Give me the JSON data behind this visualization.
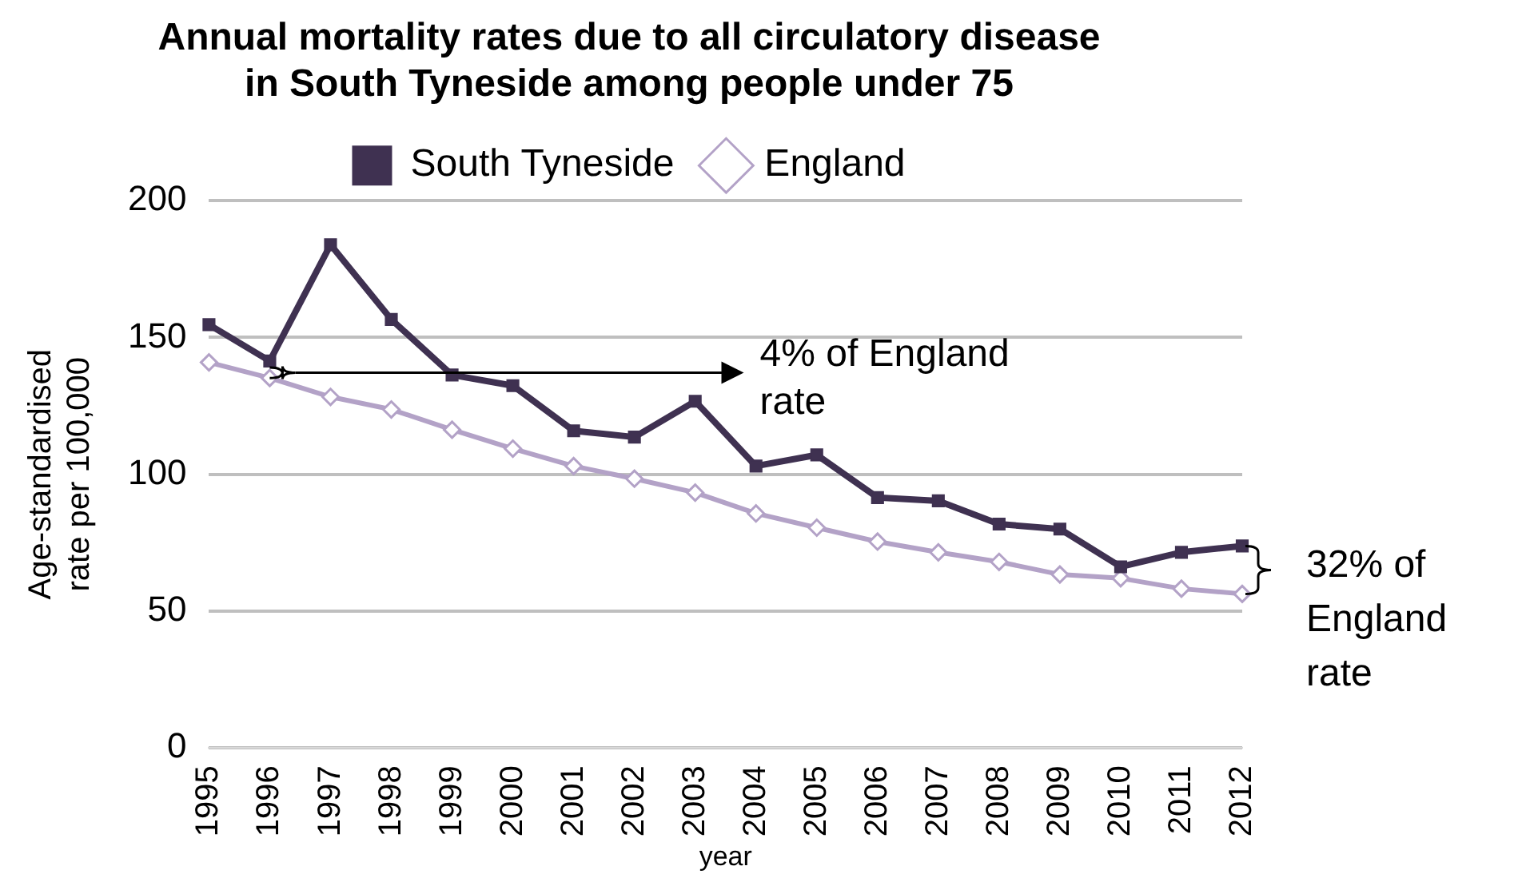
{
  "chart_data": {
    "type": "line",
    "title": "Annual mortality rates due to all circulatory disease in South Tyneside among people under 75",
    "xlabel": "year",
    "ylabel": "Age-standardised rate per 100,000",
    "categories": [
      "1995",
      "1996",
      "1997",
      "1998",
      "1999",
      "2000",
      "2001",
      "2002",
      "2003",
      "2004",
      "2005",
      "2006",
      "2007",
      "2008",
      "2009",
      "2010",
      "2011",
      "2012"
    ],
    "series": [
      {
        "name": "South Tyneside",
        "color": "#3f3151",
        "marker": "square",
        "values": [
          154.7,
          141.4,
          183.9,
          156.6,
          136.3,
          132.4,
          115.9,
          113.6,
          126.7,
          103,
          107.1,
          91.5,
          90.3,
          81.8,
          80,
          66.2,
          71.5,
          73.8
        ]
      },
      {
        "name": "England",
        "color": "#b3a2c7",
        "marker": "diamond",
        "values": [
          140.9,
          135.2,
          128.3,
          123.7,
          116.3,
          109.4,
          103,
          98.4,
          93.3,
          85.7,
          80.5,
          75.4,
          71.5,
          68,
          63.4,
          62,
          58.2,
          56.3
        ]
      }
    ],
    "ylim": [
      0,
      200
    ],
    "yticks": [
      0,
      50,
      100,
      150,
      200
    ],
    "grid": "y",
    "legend": "top",
    "annotations": [
      "4% of England rate",
      "32% of England rate"
    ]
  }
}
